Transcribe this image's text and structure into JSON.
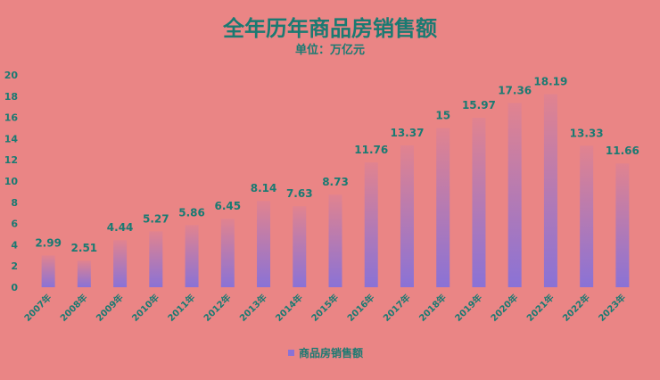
{
  "chart_data": {
    "type": "bar",
    "title": "全年历年商品房销售额",
    "subtitle": "单位：万亿元",
    "categories": [
      "2007年",
      "2008年",
      "2009年",
      "2010年",
      "2011年",
      "2012年",
      "2013年",
      "2014年",
      "2015年",
      "2016年",
      "2017年",
      "2018年",
      "2019年",
      "2020年",
      "2021年",
      "2022年",
      "2023年"
    ],
    "series": [
      {
        "name": "商品房销售额",
        "values": [
          2.99,
          2.51,
          4.44,
          5.27,
          5.86,
          6.45,
          8.14,
          7.63,
          8.73,
          11.76,
          13.37,
          15,
          15.97,
          17.36,
          18.19,
          13.33,
          11.66
        ],
        "labels": [
          "2.99",
          "2.51",
          "4.44",
          "5.27",
          "5.86",
          "6.45",
          "8.14",
          "7.63",
          "8.73",
          "11.76",
          "13.37",
          "15",
          "15.97",
          "17.36",
          "18.19",
          "13.33",
          "11.66"
        ]
      }
    ],
    "ylim": [
      0,
      20
    ],
    "yticks": [
      "0",
      "2",
      "4",
      "6",
      "8",
      "10",
      "12",
      "14",
      "16",
      "18",
      "20"
    ],
    "grid": false,
    "legend_position": "bottom",
    "colors": {
      "background": "#ea8585",
      "bar_top": "#e1838f",
      "bar_bottom": "#8a72d6",
      "text": "#1a7a72",
      "legend_marker": "#8a72d6"
    }
  }
}
